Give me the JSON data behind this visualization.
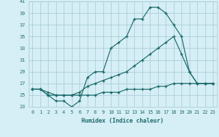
{
  "xlabel": "Humidex (Indice chaleur)",
  "bg_color": "#d6eef5",
  "grid_color": "#a8cdd8",
  "line_color": "#1a6b6b",
  "xlim": [
    -0.5,
    23.5
  ],
  "ylim": [
    23,
    41
  ],
  "yticks": [
    23,
    25,
    27,
    29,
    31,
    33,
    35,
    37,
    39,
    41
  ],
  "xticks": [
    0,
    1,
    2,
    3,
    4,
    5,
    6,
    7,
    8,
    9,
    10,
    11,
    12,
    13,
    14,
    15,
    16,
    17,
    18,
    19,
    20,
    21,
    22,
    23
  ],
  "line1_x": [
    0,
    1,
    2,
    3,
    4,
    5,
    6,
    7,
    8,
    9,
    10,
    11,
    12,
    13,
    14,
    15,
    16,
    17,
    18,
    19,
    20,
    21,
    22,
    23
  ],
  "line1_y": [
    26,
    26,
    25,
    24,
    24,
    23,
    24,
    28,
    29,
    29,
    33,
    34,
    35,
    38,
    38,
    40,
    40,
    39,
    37,
    35,
    29,
    27,
    27,
    27
  ],
  "line2_x": [
    0,
    1,
    2,
    3,
    4,
    5,
    6,
    7,
    8,
    9,
    10,
    11,
    12,
    13,
    14,
    15,
    16,
    17,
    18,
    19,
    20,
    21,
    22,
    23
  ],
  "line2_y": [
    26,
    26,
    25.5,
    25,
    25,
    25,
    25.5,
    26.5,
    27,
    27.5,
    28,
    28.5,
    29,
    30,
    31,
    32,
    33,
    34,
    35,
    32,
    29,
    27,
    27,
    27
  ],
  "line3_x": [
    0,
    1,
    2,
    3,
    4,
    5,
    6,
    7,
    8,
    9,
    10,
    11,
    12,
    13,
    14,
    15,
    16,
    17,
    18,
    19,
    20,
    21,
    22,
    23
  ],
  "line3_y": [
    26,
    26,
    25,
    25,
    25,
    25,
    25,
    25,
    25,
    25.5,
    25.5,
    25.5,
    26,
    26,
    26,
    26,
    26.5,
    26.5,
    27,
    27,
    27,
    27,
    27,
    27
  ]
}
